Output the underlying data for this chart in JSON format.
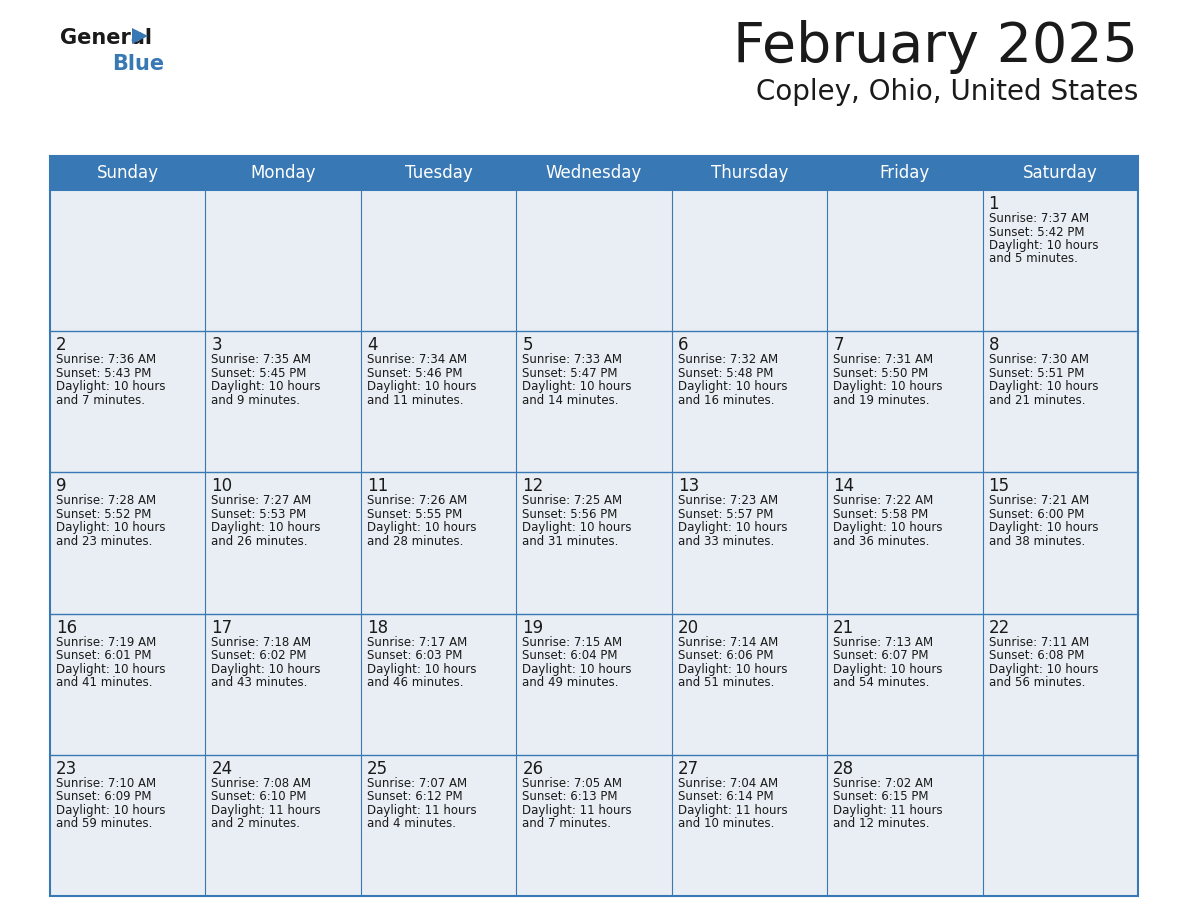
{
  "title": "February 2025",
  "subtitle": "Copley, Ohio, United States",
  "header_bg_color": "#3878b4",
  "header_text_color": "#ffffff",
  "cell_bg": "#e8eef4",
  "border_color": "#3878b4",
  "text_color": "#1a1a1a",
  "day_names": [
    "Sunday",
    "Monday",
    "Tuesday",
    "Wednesday",
    "Thursday",
    "Friday",
    "Saturday"
  ],
  "calendar": [
    [
      null,
      null,
      null,
      null,
      null,
      null,
      {
        "day": 1,
        "sunrise": "7:37 AM",
        "sunset": "5:42 PM",
        "daylight": "10 hours\nand 5 minutes."
      }
    ],
    [
      {
        "day": 2,
        "sunrise": "7:36 AM",
        "sunset": "5:43 PM",
        "daylight": "10 hours\nand 7 minutes."
      },
      {
        "day": 3,
        "sunrise": "7:35 AM",
        "sunset": "5:45 PM",
        "daylight": "10 hours\nand 9 minutes."
      },
      {
        "day": 4,
        "sunrise": "7:34 AM",
        "sunset": "5:46 PM",
        "daylight": "10 hours\nand 11 minutes."
      },
      {
        "day": 5,
        "sunrise": "7:33 AM",
        "sunset": "5:47 PM",
        "daylight": "10 hours\nand 14 minutes."
      },
      {
        "day": 6,
        "sunrise": "7:32 AM",
        "sunset": "5:48 PM",
        "daylight": "10 hours\nand 16 minutes."
      },
      {
        "day": 7,
        "sunrise": "7:31 AM",
        "sunset": "5:50 PM",
        "daylight": "10 hours\nand 19 minutes."
      },
      {
        "day": 8,
        "sunrise": "7:30 AM",
        "sunset": "5:51 PM",
        "daylight": "10 hours\nand 21 minutes."
      }
    ],
    [
      {
        "day": 9,
        "sunrise": "7:28 AM",
        "sunset": "5:52 PM",
        "daylight": "10 hours\nand 23 minutes."
      },
      {
        "day": 10,
        "sunrise": "7:27 AM",
        "sunset": "5:53 PM",
        "daylight": "10 hours\nand 26 minutes."
      },
      {
        "day": 11,
        "sunrise": "7:26 AM",
        "sunset": "5:55 PM",
        "daylight": "10 hours\nand 28 minutes."
      },
      {
        "day": 12,
        "sunrise": "7:25 AM",
        "sunset": "5:56 PM",
        "daylight": "10 hours\nand 31 minutes."
      },
      {
        "day": 13,
        "sunrise": "7:23 AM",
        "sunset": "5:57 PM",
        "daylight": "10 hours\nand 33 minutes."
      },
      {
        "day": 14,
        "sunrise": "7:22 AM",
        "sunset": "5:58 PM",
        "daylight": "10 hours\nand 36 minutes."
      },
      {
        "day": 15,
        "sunrise": "7:21 AM",
        "sunset": "6:00 PM",
        "daylight": "10 hours\nand 38 minutes."
      }
    ],
    [
      {
        "day": 16,
        "sunrise": "7:19 AM",
        "sunset": "6:01 PM",
        "daylight": "10 hours\nand 41 minutes."
      },
      {
        "day": 17,
        "sunrise": "7:18 AM",
        "sunset": "6:02 PM",
        "daylight": "10 hours\nand 43 minutes."
      },
      {
        "day": 18,
        "sunrise": "7:17 AM",
        "sunset": "6:03 PM",
        "daylight": "10 hours\nand 46 minutes."
      },
      {
        "day": 19,
        "sunrise": "7:15 AM",
        "sunset": "6:04 PM",
        "daylight": "10 hours\nand 49 minutes."
      },
      {
        "day": 20,
        "sunrise": "7:14 AM",
        "sunset": "6:06 PM",
        "daylight": "10 hours\nand 51 minutes."
      },
      {
        "day": 21,
        "sunrise": "7:13 AM",
        "sunset": "6:07 PM",
        "daylight": "10 hours\nand 54 minutes."
      },
      {
        "day": 22,
        "sunrise": "7:11 AM",
        "sunset": "6:08 PM",
        "daylight": "10 hours\nand 56 minutes."
      }
    ],
    [
      {
        "day": 23,
        "sunrise": "7:10 AM",
        "sunset": "6:09 PM",
        "daylight": "10 hours\nand 59 minutes."
      },
      {
        "day": 24,
        "sunrise": "7:08 AM",
        "sunset": "6:10 PM",
        "daylight": "11 hours\nand 2 minutes."
      },
      {
        "day": 25,
        "sunrise": "7:07 AM",
        "sunset": "6:12 PM",
        "daylight": "11 hours\nand 4 minutes."
      },
      {
        "day": 26,
        "sunrise": "7:05 AM",
        "sunset": "6:13 PM",
        "daylight": "11 hours\nand 7 minutes."
      },
      {
        "day": 27,
        "sunrise": "7:04 AM",
        "sunset": "6:14 PM",
        "daylight": "11 hours\nand 10 minutes."
      },
      {
        "day": 28,
        "sunrise": "7:02 AM",
        "sunset": "6:15 PM",
        "daylight": "11 hours\nand 12 minutes."
      },
      null
    ]
  ],
  "logo_general_color": "#1a1a1a",
  "logo_blue_color": "#3878b4",
  "logo_triangle_color": "#3878b4",
  "title_fontsize": 40,
  "subtitle_fontsize": 20,
  "header_fontsize": 12,
  "day_num_fontsize": 12,
  "cell_text_fontsize": 8.5
}
